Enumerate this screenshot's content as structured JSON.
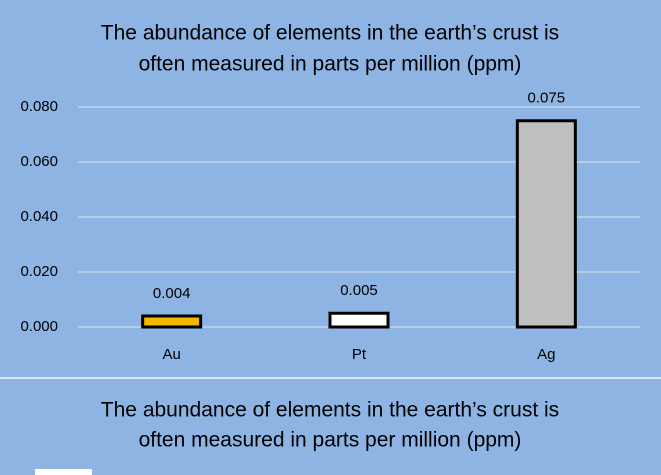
{
  "chart_data": {
    "type": "bar",
    "title": [
      "The abundance of elements in the earth’s crust is",
      "often measured in parts per million (ppm)"
    ],
    "categories": [
      "Au",
      "Pt",
      "Ag"
    ],
    "values": [
      0.004,
      0.005,
      0.075
    ],
    "colors": [
      "#f5b800",
      "#ffffff",
      "#bfbfbf"
    ],
    "ylim": [
      0,
      0.08
    ],
    "yticks": [
      {
        "value": 0,
        "label": "0.000"
      },
      {
        "value": 0.02,
        "label": "0.020"
      },
      {
        "value": 0.04,
        "label": "0.040"
      },
      {
        "value": 0.06,
        "label": "0.060"
      },
      {
        "value": 0.08,
        "label": "0.080"
      }
    ],
    "grid": true
  },
  "caption": [
    "The abundance of elements in the earth’s crust is",
    "often measured in parts per million (ppm)"
  ]
}
